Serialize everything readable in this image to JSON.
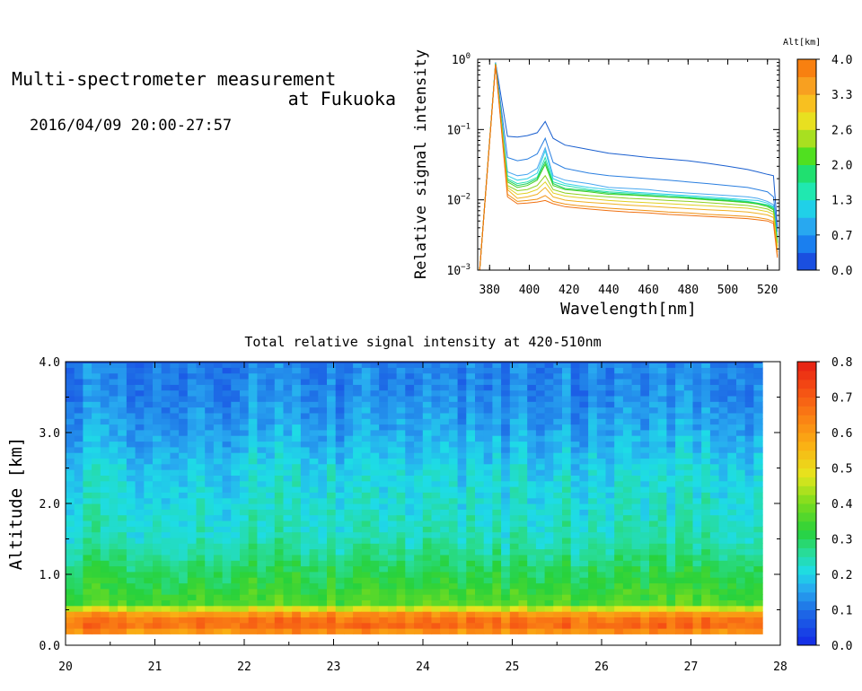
{
  "header": {
    "title_line1": "Multi-spectrometer measurement",
    "title_line2": "at Fukuoka",
    "period": "2016/04/09 20:00-27:57"
  },
  "chart_data": [
    {
      "type": "line",
      "xlabel": "Wavelength[nm]",
      "ylabel": "Relative signal intensity",
      "xlim": [
        374,
        526
      ],
      "ylim": [
        0.001,
        1
      ],
      "log_y": true,
      "x_ticks": [
        380,
        400,
        420,
        440,
        460,
        480,
        500,
        520
      ],
      "y_ticks": [
        {
          "value": 1,
          "base": "10",
          "exp": "0"
        },
        {
          "value": 0.1,
          "base": "10",
          "exp": "−1"
        },
        {
          "value": 0.01,
          "base": "10",
          "exp": "−2"
        },
        {
          "value": 0.001,
          "base": "10",
          "exp": "−3"
        }
      ],
      "x": [
        375,
        383,
        389,
        394,
        399,
        404,
        408,
        412,
        418,
        424,
        430,
        440,
        450,
        460,
        470,
        480,
        490,
        500,
        510,
        515,
        520,
        523,
        525
      ],
      "series": [
        {
          "alt": 0.2,
          "color": "#1a5fcf",
          "values": [
            0.001,
            0.9,
            0.08,
            0.078,
            0.082,
            0.09,
            0.13,
            0.075,
            0.06,
            0.056,
            0.052,
            0.046,
            0.043,
            0.04,
            0.038,
            0.036,
            0.033,
            0.03,
            0.027,
            0.025,
            0.023,
            0.022,
            0.004
          ]
        },
        {
          "alt": 0.45,
          "color": "#2a7fe0",
          "values": [
            0.001,
            0.88,
            0.04,
            0.036,
            0.038,
            0.045,
            0.075,
            0.034,
            0.028,
            0.026,
            0.024,
            0.022,
            0.021,
            0.02,
            0.019,
            0.018,
            0.017,
            0.016,
            0.015,
            0.014,
            0.013,
            0.011,
            0.0035
          ]
        },
        {
          "alt": 0.7,
          "color": "#4aa8f0",
          "values": [
            0.001,
            0.88,
            0.025,
            0.022,
            0.023,
            0.028,
            0.055,
            0.022,
            0.019,
            0.018,
            0.017,
            0.015,
            0.0145,
            0.014,
            0.013,
            0.0125,
            0.012,
            0.0115,
            0.011,
            0.0105,
            0.0095,
            0.0085,
            0.003
          ]
        },
        {
          "alt": 0.95,
          "color": "#30d0e8",
          "values": [
            0.001,
            0.87,
            0.022,
            0.019,
            0.02,
            0.024,
            0.05,
            0.02,
            0.017,
            0.016,
            0.015,
            0.014,
            0.013,
            0.0125,
            0.012,
            0.0115,
            0.011,
            0.0105,
            0.01,
            0.0098,
            0.009,
            0.008,
            0.0028
          ]
        },
        {
          "alt": 1.2,
          "color": "#20e0b0",
          "values": [
            0.001,
            0.87,
            0.02,
            0.017,
            0.018,
            0.021,
            0.04,
            0.018,
            0.016,
            0.015,
            0.014,
            0.013,
            0.0125,
            0.012,
            0.0115,
            0.011,
            0.0105,
            0.0101,
            0.0095,
            0.009,
            0.0085,
            0.0078,
            0.0026
          ]
        },
        {
          "alt": 1.5,
          "color": "#20d060",
          "values": [
            0.001,
            0.86,
            0.019,
            0.016,
            0.017,
            0.02,
            0.035,
            0.017,
            0.0145,
            0.014,
            0.0135,
            0.0125,
            0.012,
            0.0115,
            0.011,
            0.0107,
            0.0102,
            0.0098,
            0.0093,
            0.0089,
            0.0083,
            0.0075,
            0.0025
          ]
        },
        {
          "alt": 1.8,
          "color": "#40d020",
          "values": [
            0.001,
            0.86,
            0.018,
            0.015,
            0.016,
            0.019,
            0.032,
            0.016,
            0.014,
            0.0135,
            0.013,
            0.012,
            0.0117,
            0.0113,
            0.0109,
            0.0105,
            0.01,
            0.0096,
            0.0091,
            0.0087,
            0.008,
            0.0072,
            0.0024
          ]
        },
        {
          "alt": 2.1,
          "color": "#90d020",
          "values": [
            0.001,
            0.85,
            0.016,
            0.0135,
            0.014,
            0.016,
            0.022,
            0.014,
            0.0125,
            0.012,
            0.0115,
            0.011,
            0.0105,
            0.0102,
            0.0098,
            0.0095,
            0.0091,
            0.0087,
            0.0083,
            0.0079,
            0.0074,
            0.0067,
            0.0022
          ]
        },
        {
          "alt": 2.5,
          "color": "#e0d020",
          "values": [
            0.001,
            0.85,
            0.015,
            0.012,
            0.0125,
            0.014,
            0.018,
            0.0125,
            0.0113,
            0.0108,
            0.0104,
            0.0098,
            0.0094,
            0.0091,
            0.0088,
            0.0085,
            0.0082,
            0.0079,
            0.0076,
            0.0072,
            0.0068,
            0.0062,
            0.002
          ]
        },
        {
          "alt": 2.9,
          "color": "#f0b020",
          "values": [
            0.001,
            0.84,
            0.014,
            0.0105,
            0.011,
            0.012,
            0.015,
            0.011,
            0.0099,
            0.0095,
            0.0092,
            0.0088,
            0.0084,
            0.0081,
            0.0078,
            0.0075,
            0.0072,
            0.007,
            0.0067,
            0.0064,
            0.0061,
            0.0056,
            0.0018
          ]
        },
        {
          "alt": 3.3,
          "color": "#f09010",
          "values": [
            0.001,
            0.84,
            0.012,
            0.0095,
            0.0098,
            0.0102,
            0.0115,
            0.0095,
            0.0087,
            0.0083,
            0.008,
            0.0076,
            0.0073,
            0.007,
            0.0067,
            0.0065,
            0.0062,
            0.006,
            0.0058,
            0.0056,
            0.0053,
            0.0049,
            0.0016
          ]
        },
        {
          "alt": 3.8,
          "color": "#f07010",
          "values": [
            0.001,
            0.83,
            0.011,
            0.0088,
            0.009,
            0.0093,
            0.0098,
            0.0088,
            0.008,
            0.0077,
            0.0074,
            0.007,
            0.0067,
            0.0065,
            0.0062,
            0.006,
            0.0058,
            0.0056,
            0.0054,
            0.0052,
            0.005,
            0.0046,
            0.0015
          ]
        }
      ],
      "colorbar": {
        "label": "Alt[km]",
        "min": 0,
        "max": 4,
        "ticks": [
          "4.0",
          "3.3",
          "2.6",
          "2.0",
          "1.3",
          "0.7",
          "0.0"
        ],
        "colors": [
          "#1a4fe0",
          "#1a7fef",
          "#28a8f0",
          "#20d0e8",
          "#20e8b0",
          "#20e070",
          "#50e020",
          "#a8e020",
          "#e8e020",
          "#f8c020",
          "#f8a020",
          "#f88010"
        ]
      }
    },
    {
      "type": "heatmap",
      "title": "Total relative signal intensity at 420-510nm",
      "xlabel": "",
      "ylabel": "Altitude [km]",
      "xlim": [
        20,
        28
      ],
      "ylim": [
        0,
        4
      ],
      "data_x_end": 27.8,
      "x_ticks": [
        "20",
        "21",
        "22",
        "23",
        "24",
        "25",
        "26",
        "27",
        "28"
      ],
      "y_ticks": [
        "0.0",
        "1.0",
        "2.0",
        "3.0",
        "4.0"
      ],
      "z_range": [
        0,
        0.8
      ],
      "profile": {
        "altitude": [
          0.0,
          0.12,
          0.18,
          0.25,
          0.32,
          0.4,
          0.48,
          0.6,
          0.8,
          1.0,
          1.2,
          1.5,
          2.0,
          2.5,
          3.0,
          3.5,
          4.0
        ],
        "intensity": [
          0.0,
          0.0,
          0.58,
          0.72,
          0.62,
          0.7,
          0.52,
          0.36,
          0.33,
          0.31,
          0.28,
          0.24,
          0.22,
          0.2,
          0.16,
          0.13,
          0.12
        ]
      },
      "colorbar": {
        "ticks": [
          "0.8",
          "0.7",
          "0.6",
          "0.5",
          "0.4",
          "0.3",
          "0.2",
          "0.1",
          "0.0"
        ]
      }
    }
  ]
}
